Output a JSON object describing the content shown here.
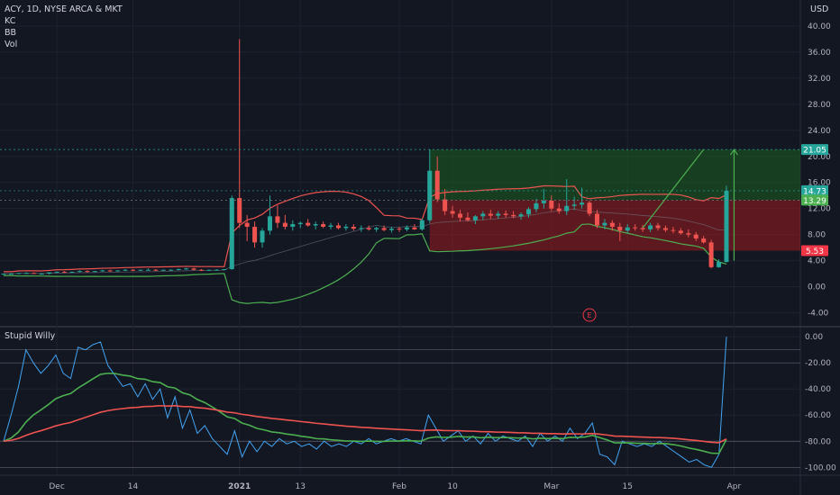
{
  "header": {
    "symbol_line": "ACY, 1D, NYSE ARCA & MKT",
    "indicators": [
      "KC",
      "BB",
      "Vol"
    ],
    "currency": "USD"
  },
  "price_badges": [
    {
      "label": "21.05",
      "value": 21.05,
      "color": "#26a69a"
    },
    {
      "label": "14.73",
      "value": 14.73,
      "color": "#26a69a"
    },
    {
      "label": "13.29",
      "value": 13.29,
      "color": "#4caf50"
    },
    {
      "label": "5.53",
      "value": 5.53,
      "color": "#f23645"
    }
  ],
  "oscillator": {
    "name": "Stupid Willy"
  },
  "colors": {
    "background": "#131722",
    "up_candle": "#26a69a",
    "down_candle": "#ef5350",
    "profit_zone": "#1b5e20",
    "loss_zone": "#b71c1c",
    "band_upper": "#ef5350",
    "band_lower": "#4caf50",
    "osc_line": "#42a5f5",
    "osc_slow": "#ef5350",
    "osc_fast": "#4caf50"
  },
  "chart_data": [
    {
      "type": "candlestick",
      "title": "ACY, 1D, NYSE ARCA & MKT",
      "y_axis": {
        "ticks": [
          -4,
          0,
          4,
          8,
          12,
          16,
          20,
          24,
          28,
          32,
          36,
          40
        ],
        "tick_labels": [
          "-4.00",
          "0.00",
          "4.00",
          "8.00",
          "12.00",
          "16.00",
          "20.00",
          "24.00",
          "28.00",
          "32.00",
          "36.00",
          "40.00"
        ],
        "unit": "USD",
        "range": [
          -6,
          44
        ]
      },
      "x_axis": {
        "tick_labels": [
          "Dec",
          "14",
          "2021",
          "13",
          "Feb",
          "10",
          "Mar",
          "15",
          "Apr"
        ]
      },
      "price_levels": {
        "target": 21.05,
        "entry": 13.29,
        "stop": 5.53,
        "last_close": 14.73
      },
      "marker": "E",
      "candles": [
        [
          1.9,
          2.0,
          1.8,
          2.0
        ],
        [
          2.0,
          2.1,
          1.9,
          2.0
        ],
        [
          2.0,
          2.1,
          1.9,
          2.1
        ],
        [
          2.1,
          2.2,
          2.0,
          2.1
        ],
        [
          2.1,
          2.2,
          2.0,
          2.0
        ],
        [
          2.0,
          2.1,
          1.9,
          2.0
        ],
        [
          2.0,
          2.2,
          1.9,
          2.2
        ],
        [
          2.2,
          2.3,
          2.1,
          2.3
        ],
        [
          2.3,
          2.4,
          2.1,
          2.2
        ],
        [
          2.2,
          2.3,
          2.1,
          2.3
        ],
        [
          2.3,
          2.5,
          2.2,
          2.4
        ],
        [
          2.4,
          2.5,
          2.2,
          2.3
        ],
        [
          2.3,
          2.4,
          2.2,
          2.4
        ],
        [
          2.4,
          2.6,
          2.3,
          2.5
        ],
        [
          2.5,
          2.6,
          2.3,
          2.4
        ],
        [
          2.4,
          2.5,
          2.3,
          2.5
        ],
        [
          2.5,
          2.7,
          2.4,
          2.6
        ],
        [
          2.6,
          2.7,
          2.4,
          2.5
        ],
        [
          2.5,
          2.6,
          2.4,
          2.6
        ],
        [
          2.6,
          2.8,
          2.5,
          2.6
        ],
        [
          2.6,
          2.7,
          2.4,
          2.5
        ],
        [
          2.5,
          2.6,
          2.4,
          2.6
        ],
        [
          2.6,
          2.7,
          2.5,
          2.6
        ],
        [
          2.6,
          2.8,
          2.5,
          2.7
        ],
        [
          2.7,
          2.9,
          2.6,
          2.8
        ],
        [
          2.8,
          2.9,
          2.5,
          2.6
        ],
        [
          2.6,
          2.7,
          2.4,
          2.5
        ],
        [
          2.5,
          2.6,
          2.4,
          2.6
        ],
        [
          2.6,
          2.7,
          2.5,
          2.6
        ],
        [
          2.6,
          2.7,
          2.5,
          2.7
        ],
        [
          2.7,
          14.0,
          2.6,
          13.6
        ],
        [
          13.6,
          38.0,
          9.0,
          9.8
        ],
        [
          9.8,
          11.0,
          7.0,
          9.2
        ],
        [
          9.2,
          10.0,
          6.0,
          6.8
        ],
        [
          6.8,
          9.0,
          6.0,
          8.6
        ],
        [
          8.6,
          14.0,
          8.0,
          10.8
        ],
        [
          10.8,
          12.5,
          9.0,
          9.8
        ],
        [
          9.8,
          11.0,
          8.8,
          9.2
        ],
        [
          9.2,
          10.2,
          8.6,
          9.6
        ],
        [
          9.6,
          10.0,
          9.0,
          9.8
        ],
        [
          9.8,
          10.4,
          9.2,
          9.4
        ],
        [
          9.4,
          10.0,
          8.8,
          9.6
        ],
        [
          9.6,
          10.0,
          9.0,
          9.2
        ],
        [
          9.2,
          9.8,
          8.8,
          9.4
        ],
        [
          9.4,
          9.8,
          8.8,
          9.0
        ],
        [
          9.0,
          9.6,
          8.6,
          9.2
        ],
        [
          9.2,
          9.6,
          8.6,
          8.9
        ],
        [
          8.9,
          9.4,
          8.4,
          9.0
        ],
        [
          9.0,
          9.4,
          8.6,
          8.8
        ],
        [
          8.8,
          9.2,
          8.4,
          9.0
        ],
        [
          9.0,
          9.4,
          8.5,
          8.7
        ],
        [
          8.7,
          9.2,
          8.3,
          8.9
        ],
        [
          8.9,
          9.2,
          8.4,
          8.8
        ],
        [
          8.8,
          9.4,
          8.5,
          9.1
        ],
        [
          9.1,
          9.6,
          8.7,
          8.8
        ],
        [
          8.8,
          10.5,
          8.6,
          10.2
        ],
        [
          10.2,
          21.05,
          9.8,
          17.8
        ],
        [
          17.8,
          20.0,
          13.0,
          13.4
        ],
        [
          13.4,
          15.0,
          11.0,
          11.6
        ],
        [
          11.6,
          12.4,
          10.6,
          11.2
        ],
        [
          11.2,
          11.8,
          10.0,
          10.6
        ],
        [
          10.6,
          11.4,
          10.0,
          10.2
        ],
        [
          10.2,
          11.0,
          9.6,
          10.8
        ],
        [
          10.8,
          11.6,
          10.2,
          11.2
        ],
        [
          11.2,
          11.8,
          10.4,
          10.9
        ],
        [
          10.9,
          11.6,
          10.4,
          11.2
        ],
        [
          11.2,
          11.7,
          10.6,
          11.0
        ],
        [
          11.0,
          11.6,
          10.5,
          10.8
        ],
        [
          10.8,
          11.4,
          10.3,
          11.1
        ],
        [
          11.1,
          12.2,
          10.6,
          11.9
        ],
        [
          11.9,
          13.5,
          11.4,
          12.8
        ],
        [
          12.8,
          15.0,
          12.0,
          13.2
        ],
        [
          13.2,
          14.0,
          11.6,
          12.0
        ],
        [
          12.0,
          12.8,
          11.2,
          11.6
        ],
        [
          11.6,
          16.5,
          11.0,
          12.4
        ],
        [
          12.4,
          13.8,
          11.8,
          12.6
        ],
        [
          12.6,
          15.2,
          12.0,
          12.9
        ],
        [
          12.9,
          13.2,
          10.8,
          11.2
        ],
        [
          11.2,
          11.8,
          9.0,
          9.4
        ],
        [
          9.4,
          10.4,
          8.8,
          9.8
        ],
        [
          9.8,
          10.2,
          8.6,
          9.2
        ],
        [
          9.2,
          9.8,
          7.0,
          8.6
        ],
        [
          8.6,
          9.6,
          8.2,
          9.1
        ],
        [
          9.1,
          9.6,
          8.6,
          9.0
        ],
        [
          9.0,
          9.5,
          8.4,
          8.8
        ],
        [
          8.8,
          9.8,
          8.4,
          9.4
        ],
        [
          9.4,
          9.8,
          8.6,
          9.0
        ],
        [
          9.0,
          9.4,
          8.4,
          8.7
        ],
        [
          8.7,
          9.2,
          8.2,
          8.6
        ],
        [
          8.6,
          9.0,
          8.0,
          8.2
        ],
        [
          8.2,
          8.8,
          7.6,
          8.0
        ],
        [
          8.0,
          8.4,
          7.0,
          7.4
        ],
        [
          7.4,
          7.8,
          6.6,
          6.8
        ],
        [
          6.8,
          7.2,
          2.8,
          3.0
        ],
        [
          3.0,
          4.2,
          2.9,
          3.8
        ],
        [
          3.8,
          15.5,
          3.7,
          14.73
        ]
      ]
    },
    {
      "type": "line",
      "title": "Stupid Willy",
      "y_axis": {
        "ticks": [
          -100,
          -80,
          -60,
          -40,
          -20,
          0
        ],
        "tick_labels": [
          "-100.00",
          "-80.00",
          "-60.00",
          "-40.00",
          "-20.00",
          "0.00"
        ],
        "range": [
          -106,
          7
        ]
      },
      "series": [
        {
          "name": "",
          "role": "oscillator",
          "values": [
            -80,
            -60,
            -38,
            -10,
            -20,
            -28,
            -22,
            -14,
            -28,
            -32,
            -8,
            -10,
            -6,
            -4,
            -22,
            -30,
            -38,
            -36,
            -46,
            -36,
            -48,
            -40,
            -62,
            -46,
            -70,
            -56,
            -74,
            -68,
            -78,
            -84,
            -90,
            -72,
            -92,
            -80,
            -88,
            -80,
            -84,
            -78,
            -82,
            -80,
            -84,
            -82,
            -86,
            -80,
            -84,
            -82,
            -84,
            -80,
            -82,
            -78,
            -82,
            -80,
            -78,
            -80,
            -78,
            -80,
            -82,
            -60,
            -70,
            -80,
            -76,
            -72,
            -80,
            -76,
            -82,
            -74,
            -80,
            -76,
            -78,
            -80,
            -76,
            -84,
            -74,
            -80,
            -76,
            -80,
            -70,
            -78,
            -74,
            -66,
            -90,
            -92,
            -98,
            -80,
            -82,
            -84,
            -82,
            -84,
            -80,
            -84,
            -88,
            -92,
            -96,
            -94,
            -98,
            -100,
            -90,
            0
          ]
        }
      ]
    }
  ]
}
